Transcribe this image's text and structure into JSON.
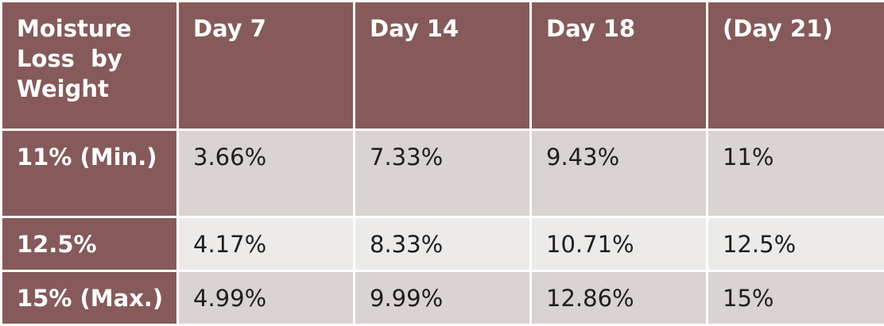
{
  "table": {
    "header": [
      "Moisture Loss  by Weight",
      "Day 7",
      "Day 14",
      "Day 18",
      "(Day 21)"
    ],
    "rows": [
      [
        "11% (Min.)",
        "3.66%",
        "7.33%",
        "9.43%",
        "11%"
      ],
      [
        "12.5%",
        "4.17%",
        "8.33%",
        "10.71%",
        "12.5%"
      ],
      [
        "15% (Max.)",
        "4.99%",
        "9.99%",
        "12.86%",
        "15%"
      ]
    ]
  }
}
